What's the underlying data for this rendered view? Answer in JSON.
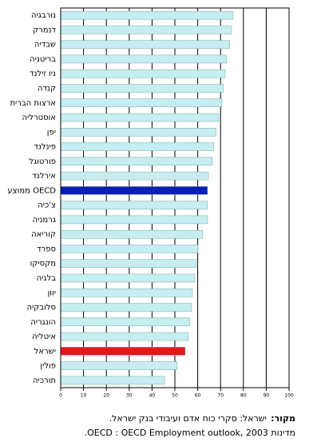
{
  "chart_data": {
    "type": "bar",
    "orientation": "horizontal",
    "categories": [
      "נורבגיה",
      "דנמרק",
      "שבדיה",
      "בריטניה",
      "ניו זילנד",
      "קנדה",
      "ארצות הברית",
      "אוסטרליה",
      "יפן",
      "פינלנד",
      "פורטוגל",
      "אירלנד",
      "ממוצע OECD",
      "צ'כיה",
      "גרמניה",
      "קוריאה",
      "ספרד",
      "מקסיקו",
      "בלגיה",
      "יוון",
      "סלובקיה",
      "הונגריה",
      "איטליה",
      "ישראל",
      "פולין",
      "תורכיה"
    ],
    "values": [
      75.5,
      74.8,
      74,
      72.7,
      72,
      71.3,
      70.6,
      69.2,
      68,
      67,
      66.4,
      64.7,
      64.3,
      64.3,
      64.3,
      62.2,
      60.1,
      59.4,
      58.7,
      57.7,
      57.3,
      56.6,
      55.9,
      54.5,
      51,
      45.5
    ],
    "colors": [
      "#c6eef0",
      "#c6eef0",
      "#c6eef0",
      "#c6eef0",
      "#c6eef0",
      "#c6eef0",
      "#c6eef0",
      "#c6eef0",
      "#c6eef0",
      "#c6eef0",
      "#c6eef0",
      "#c6eef0",
      "#0a1fb5",
      "#c6eef0",
      "#c6eef0",
      "#c6eef0",
      "#c6eef0",
      "#c6eef0",
      "#c6eef0",
      "#c6eef0",
      "#c6eef0",
      "#c6eef0",
      "#c6eef0",
      "#e8141a",
      "#c6eef0",
      "#c6eef0"
    ],
    "xlim": [
      0,
      100
    ],
    "xticks": [
      0,
      10,
      20,
      30,
      40,
      50,
      60,
      70,
      80,
      90,
      100
    ],
    "grid": true,
    "source": {
      "label": "מקור:",
      "lines": [
        "ישראל: סקרי כוח אדם ועיבודי בנק ישראל.",
        "מדינות OECD : OECD Employment outlook, 2003."
      ]
    }
  }
}
